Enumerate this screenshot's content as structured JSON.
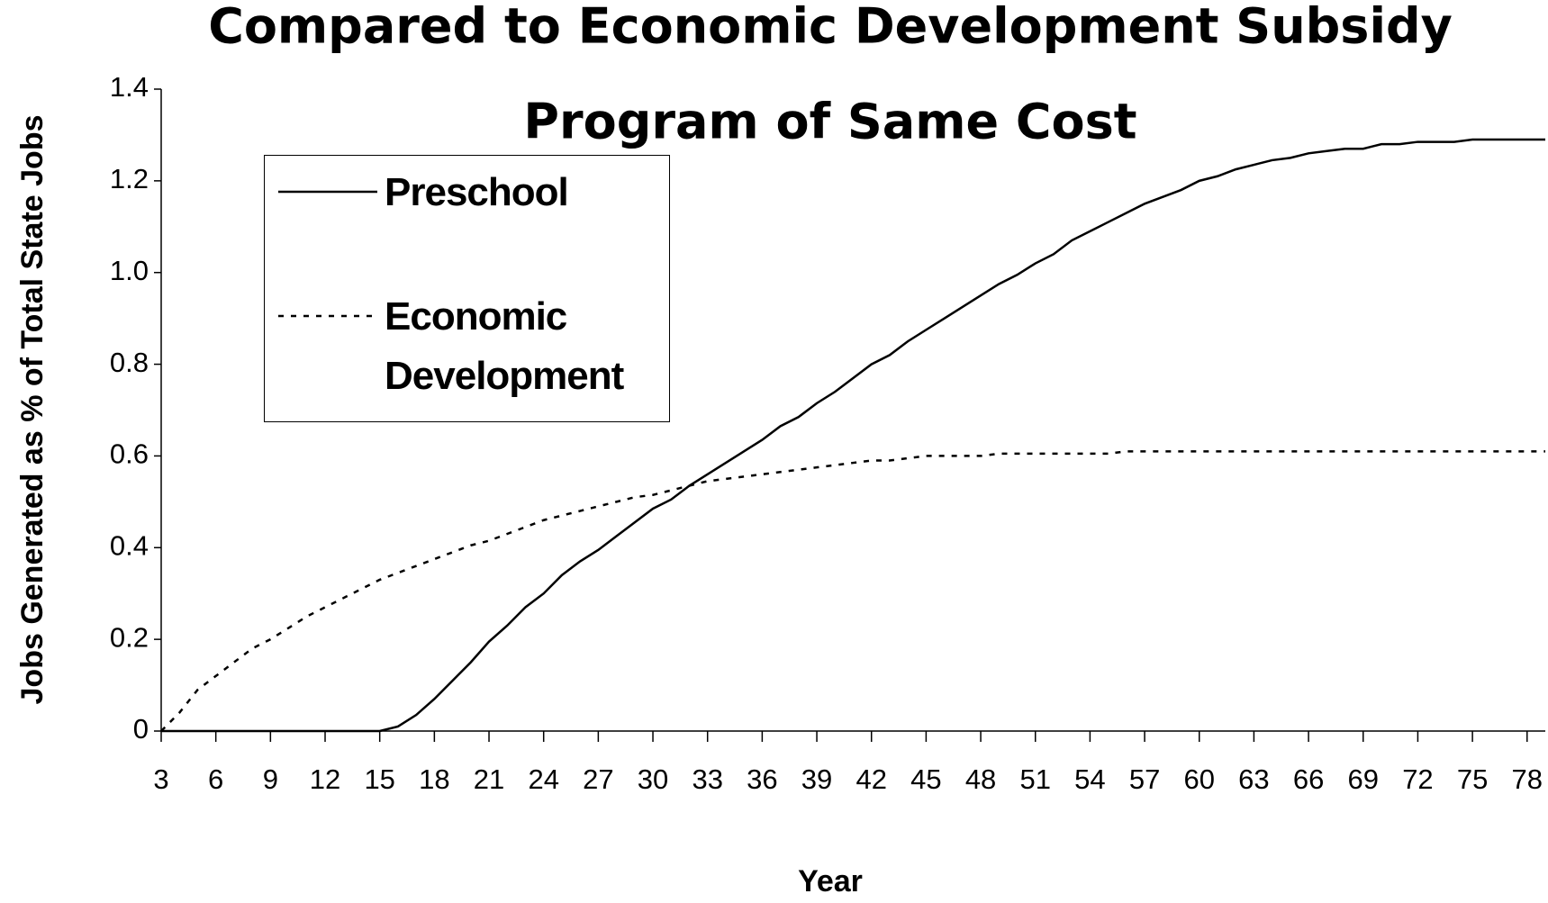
{
  "chart_data": {
    "type": "line",
    "title": [
      "Compared to  Economic Development Subsidy",
      "Program of Same Cost"
    ],
    "x_label": "Year",
    "y_label": "Jobs Generated as % of Total State Jobs",
    "x": [
      3,
      4,
      5,
      6,
      7,
      8,
      9,
      10,
      11,
      12,
      13,
      14,
      15,
      16,
      17,
      18,
      19,
      20,
      21,
      22,
      23,
      24,
      25,
      26,
      27,
      28,
      29,
      30,
      31,
      32,
      33,
      34,
      35,
      36,
      37,
      38,
      39,
      40,
      41,
      42,
      43,
      44,
      45,
      46,
      47,
      48,
      49,
      50,
      51,
      52,
      53,
      54,
      55,
      56,
      57,
      58,
      59,
      60,
      61,
      62,
      63,
      64,
      65,
      66,
      67,
      68,
      69,
      70,
      71,
      72,
      73,
      74,
      75,
      76,
      77,
      78,
      79
    ],
    "series": [
      {
        "name": "Preschool",
        "color": "#000000",
        "style": "solid",
        "values": [
          0,
          0,
          0,
          0,
          0,
          0,
          0,
          0,
          0,
          0,
          0,
          0,
          0,
          0.01,
          0.035,
          0.07,
          0.11,
          0.15,
          0.195,
          0.23,
          0.27,
          0.3,
          0.34,
          0.37,
          0.395,
          0.425,
          0.455,
          0.485,
          0.505,
          0.535,
          0.56,
          0.585,
          0.61,
          0.635,
          0.665,
          0.685,
          0.715,
          0.74,
          0.77,
          0.8,
          0.82,
          0.85,
          0.875,
          0.9,
          0.925,
          0.95,
          0.975,
          0.995,
          1.02,
          1.04,
          1.07,
          1.09,
          1.11,
          1.13,
          1.15,
          1.165,
          1.18,
          1.2,
          1.21,
          1.225,
          1.235,
          1.245,
          1.25,
          1.26,
          1.265,
          1.27,
          1.27,
          1.28,
          1.28,
          1.285,
          1.285,
          1.285,
          1.29,
          1.29,
          1.29,
          1.29,
          1.29
        ]
      },
      {
        "name": "Economic Development",
        "color": "#000000",
        "style": "dashed",
        "values": [
          0,
          0.04,
          0.09,
          0.12,
          0.15,
          0.18,
          0.2,
          0.225,
          0.25,
          0.27,
          0.29,
          0.31,
          0.33,
          0.345,
          0.36,
          0.375,
          0.39,
          0.405,
          0.415,
          0.43,
          0.445,
          0.46,
          0.47,
          0.48,
          0.49,
          0.5,
          0.51,
          0.515,
          0.525,
          0.535,
          0.545,
          0.55,
          0.555,
          0.56,
          0.565,
          0.57,
          0.575,
          0.58,
          0.585,
          0.59,
          0.59,
          0.595,
          0.6,
          0.6,
          0.6,
          0.6,
          0.605,
          0.605,
          0.605,
          0.605,
          0.605,
          0.605,
          0.605,
          0.61,
          0.61,
          0.61,
          0.61,
          0.61,
          0.61,
          0.61,
          0.61,
          0.61,
          0.61,
          0.61,
          0.61,
          0.61,
          0.61,
          0.61,
          0.61,
          0.61,
          0.61,
          0.61,
          0.61,
          0.61,
          0.61,
          0.61,
          0.61
        ]
      }
    ],
    "xlim": [
      3,
      79
    ],
    "xticks": [
      3,
      6,
      9,
      12,
      15,
      18,
      21,
      24,
      27,
      30,
      33,
      36,
      39,
      42,
      45,
      48,
      51,
      54,
      57,
      60,
      63,
      66,
      69,
      72,
      75,
      78
    ],
    "ylim": [
      0,
      1.4
    ],
    "yticks": [
      0,
      0.2,
      0.4,
      0.6,
      0.8,
      {
        "value": 1,
        "label": "1.0"
      },
      1.2,
      1.4
    ],
    "grid": false,
    "legend": "upper left"
  }
}
